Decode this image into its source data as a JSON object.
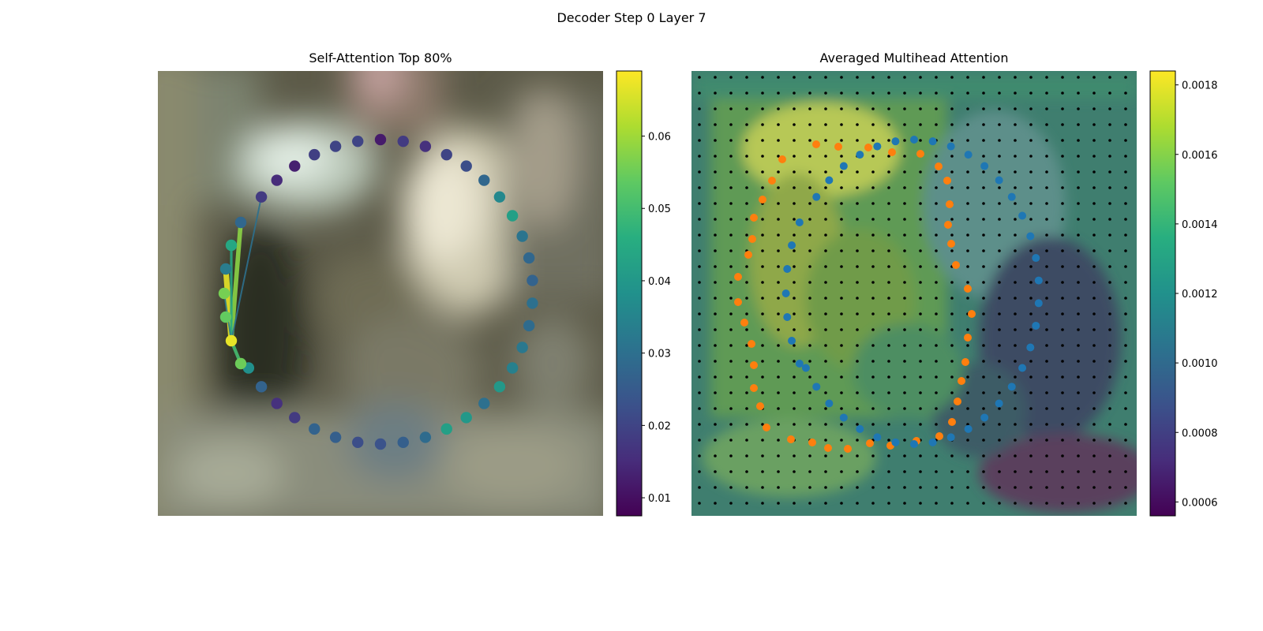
{
  "suptitle": "Decoder Step 0 Layer 7",
  "chart_data": [
    {
      "type": "scatter",
      "title": "Self-Attention Top 80%",
      "description_free": true,
      "background": "blurred photo",
      "xlabel": "",
      "ylabel": "",
      "grid": false,
      "points": [
        {
          "x": 0.0,
          "y": 1.0,
          "v": 0.012
        },
        {
          "x": 0.038,
          "y": 0.996,
          "v": 0.018
        },
        {
          "x": 0.076,
          "y": 0.985,
          "v": 0.016
        },
        {
          "x": 0.113,
          "y": 0.968,
          "v": 0.02
        },
        {
          "x": 0.147,
          "y": 0.944,
          "v": 0.022
        },
        {
          "x": 0.178,
          "y": 0.915,
          "v": 0.028
        },
        {
          "x": 0.206,
          "y": 0.88,
          "v": 0.036
        },
        {
          "x": 0.231,
          "y": 0.84,
          "v": 0.042
        },
        {
          "x": 0.251,
          "y": 0.795,
          "v": 0.031
        },
        {
          "x": 0.266,
          "y": 0.746,
          "v": 0.028
        },
        {
          "x": 0.276,
          "y": 0.695,
          "v": 0.027
        },
        {
          "x": 0.281,
          "y": 0.642,
          "v": 0.03
        },
        {
          "x": 0.276,
          "y": 0.585,
          "v": 0.029
        },
        {
          "x": 0.266,
          "y": 0.535,
          "v": 0.032
        },
        {
          "x": 0.251,
          "y": 0.487,
          "v": 0.034
        },
        {
          "x": 0.231,
          "y": 0.441,
          "v": 0.04
        },
        {
          "x": 0.206,
          "y": 0.4,
          "v": 0.03
        },
        {
          "x": 0.178,
          "y": 0.364,
          "v": 0.04
        },
        {
          "x": 0.147,
          "y": 0.335,
          "v": 0.042
        },
        {
          "x": 0.113,
          "y": 0.312,
          "v": 0.029
        },
        {
          "x": 0.076,
          "y": 0.295,
          "v": 0.026
        },
        {
          "x": 0.038,
          "y": 0.285,
          "v": 0.023
        },
        {
          "x": 0.0,
          "y": 0.282,
          "v": 0.022
        },
        {
          "x": -0.038,
          "y": 0.285,
          "v": 0.026
        },
        {
          "x": -0.076,
          "y": 0.295,
          "v": 0.027
        },
        {
          "x": -0.113,
          "y": 0.312,
          "v": 0.018
        },
        {
          "x": -0.147,
          "y": 0.335,
          "v": 0.016
        },
        {
          "x": -0.178,
          "y": 0.364,
          "v": 0.027
        },
        {
          "x": -0.206,
          "y": 0.4,
          "v": 0.038
        },
        {
          "x": -0.221,
          "y": 0.431,
          "v": 0.055
        },
        {
          "x": -0.236,
          "y": 0.477,
          "v": 0.067
        },
        {
          "x": -0.247,
          "y": 0.53,
          "v": 0.054
        },
        {
          "x": -0.248,
          "y": 0.586,
          "v": 0.056
        },
        {
          "x": -0.245,
          "y": 0.638,
          "v": 0.033
        },
        {
          "x": -0.237,
          "y": 0.685,
          "v": 0.044
        },
        {
          "x": -0.222,
          "y": 0.735,
          "v": 0.028
        },
        {
          "x": -0.202,
          "y": 0.778,
          "v": 0.018
        },
        {
          "x": -0.178,
          "y": 0.82,
          "v": 0.015
        },
        {
          "x": -0.147,
          "y": 0.85,
          "v": 0.013
        },
        {
          "x": -0.113,
          "y": 0.872,
          "v": 0.019
        },
        {
          "x": -0.076,
          "y": 0.887,
          "v": 0.02
        },
        {
          "x": -0.038,
          "y": 0.897,
          "v": 0.02
        }
      ],
      "attention_links": [
        {
          "from": 30,
          "to": 33,
          "weight": 0.067
        },
        {
          "from": 30,
          "to": 35,
          "weight": 0.058
        },
        {
          "from": 30,
          "to": 34,
          "weight": 0.044
        },
        {
          "from": 30,
          "to": 29,
          "weight": 0.05
        },
        {
          "from": 30,
          "to": 32,
          "weight": 0.033
        },
        {
          "from": 30,
          "to": 36,
          "weight": 0.03
        }
      ],
      "colorbar": {
        "cmap": "viridis",
        "min": 0.0075,
        "max": 0.069,
        "ticks": [
          "0.01",
          "0.02",
          "0.03",
          "0.04",
          "0.05",
          "0.06"
        ],
        "tick_values": [
          0.01,
          0.02,
          0.03,
          0.04,
          0.05,
          0.06
        ]
      }
    },
    {
      "type": "heatmap",
      "title": "Averaged Multihead Attention",
      "overlay": "scatter",
      "series": [
        {
          "color": "#1f77b4"
        },
        {
          "color": "#ff7f0e"
        }
      ],
      "grid_points": {
        "rows": 28,
        "cols": 28,
        "color": "#000000"
      },
      "colorbar": {
        "cmap": "viridis",
        "min": 0.00056,
        "max": 0.00184,
        "ticks": [
          "0.0006",
          "0.0008",
          "0.0010",
          "0.0012",
          "0.0014",
          "0.0016",
          "0.0018"
        ],
        "tick_values": [
          0.0006,
          0.0008,
          0.001,
          0.0012,
          0.0014,
          0.0016,
          0.0018
        ]
      }
    }
  ]
}
